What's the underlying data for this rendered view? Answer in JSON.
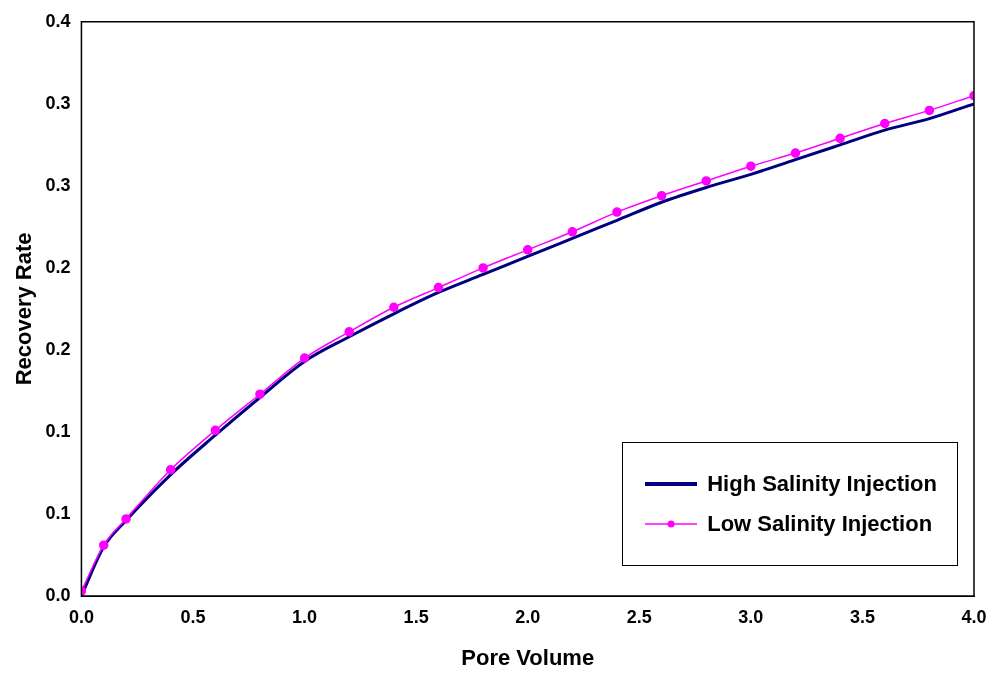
{
  "chart_data": {
    "type": "line",
    "xlabel": "Pore Volume",
    "ylabel": "Recovery Rate",
    "xlim": [
      0,
      4
    ],
    "xticks": [
      {
        "value": 0,
        "label": "0.0"
      },
      {
        "value": 0.5,
        "label": "0.5"
      },
      {
        "value": 1,
        "label": "1.0"
      },
      {
        "value": 1.5,
        "label": "1.5"
      },
      {
        "value": 2,
        "label": "2.0"
      },
      {
        "value": 2.5,
        "label": "2.5"
      },
      {
        "value": 3,
        "label": "3.0"
      },
      {
        "value": 3.5,
        "label": "3.5"
      },
      {
        "value": 4,
        "label": "4.0"
      }
    ],
    "ylim": [
      0,
      0.35
    ],
    "yticks": [
      {
        "value": 0,
        "label": "0.0"
      },
      {
        "value": 0.05,
        "label": "0.1"
      },
      {
        "value": 0.1,
        "label": "0.1"
      },
      {
        "value": 0.15,
        "label": "0.2"
      },
      {
        "value": 0.2,
        "label": "0.2"
      },
      {
        "value": 0.25,
        "label": "0.3"
      },
      {
        "value": 0.3,
        "label": "0.3"
      },
      {
        "value": 0.35,
        "label": "0.4"
      }
    ],
    "x": [
      0,
      0.1,
      0.2,
      0.4,
      0.6,
      0.8,
      1.0,
      1.2,
      1.4,
      1.6,
      1.8,
      2.0,
      2.2,
      2.4,
      2.6,
      2.8,
      3.0,
      3.2,
      3.4,
      3.6,
      3.8,
      4.0
    ],
    "grid": false,
    "legend": "bottom right",
    "series": [
      {
        "name": "High Salinity Injection",
        "color": "#000080",
        "marker": "none",
        "values": [
          0,
          0.03,
          0.046,
          0.074,
          0.098,
          0.121,
          0.143,
          0.158,
          0.172,
          0.185,
          0.196,
          0.207,
          0.218,
          0.229,
          0.24,
          0.249,
          0.257,
          0.266,
          0.275,
          0.284,
          0.291,
          0.3
        ]
      },
      {
        "name": "Low Salinity Injection",
        "color": "#ff00ff",
        "marker": "circle",
        "values": [
          0.003,
          0.031,
          0.047,
          0.077,
          0.101,
          0.123,
          0.145,
          0.161,
          0.176,
          0.188,
          0.2,
          0.211,
          0.222,
          0.234,
          0.244,
          0.253,
          0.262,
          0.27,
          0.279,
          0.288,
          0.296,
          0.305
        ]
      }
    ]
  }
}
